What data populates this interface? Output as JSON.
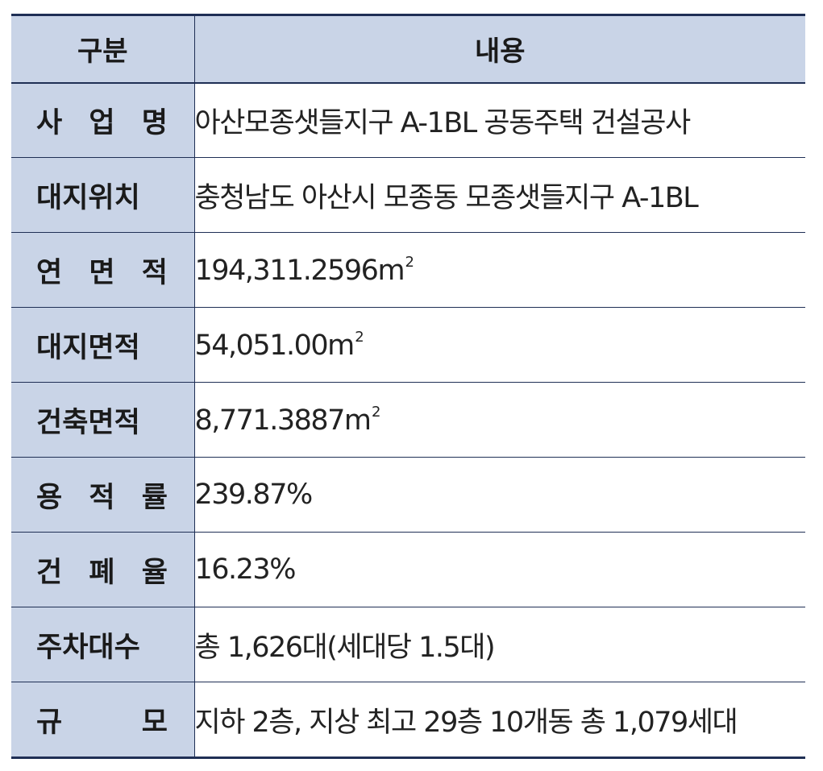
{
  "header": {
    "col1": "구분",
    "col2": "내용"
  },
  "rows": [
    {
      "label": "사 업 명",
      "value": "아산모종샛들지구 A-1BL 공동주택 건설공사"
    },
    {
      "label": "대지위치",
      "value": "충청남도 아산시 모종동 모종샛들지구 A-1BL"
    },
    {
      "label": "연 면 적",
      "value": "194,311.2596",
      "unit": "m",
      "unit_sup": "2"
    },
    {
      "label": "대지면적",
      "value": "54,051.00",
      "unit": "m",
      "unit_sup": "2"
    },
    {
      "label": "건축면적",
      "value": "8,771.3887",
      "unit": "m",
      "unit_sup": "2"
    },
    {
      "label": "용 적 률",
      "value": "239.87%"
    },
    {
      "label": "건 폐 율",
      "value": "16.23%"
    },
    {
      "label": "주차대수",
      "value": "총 1,626대(세대당 1.5대)"
    },
    {
      "label": "규 모",
      "value": "지하 2층, 지상 최고 29층 10개동 총 1,079세대"
    }
  ],
  "colors": {
    "header_bg": "#c9d4e7",
    "border": "#1f2f55",
    "text": "#1a1a1a"
  }
}
